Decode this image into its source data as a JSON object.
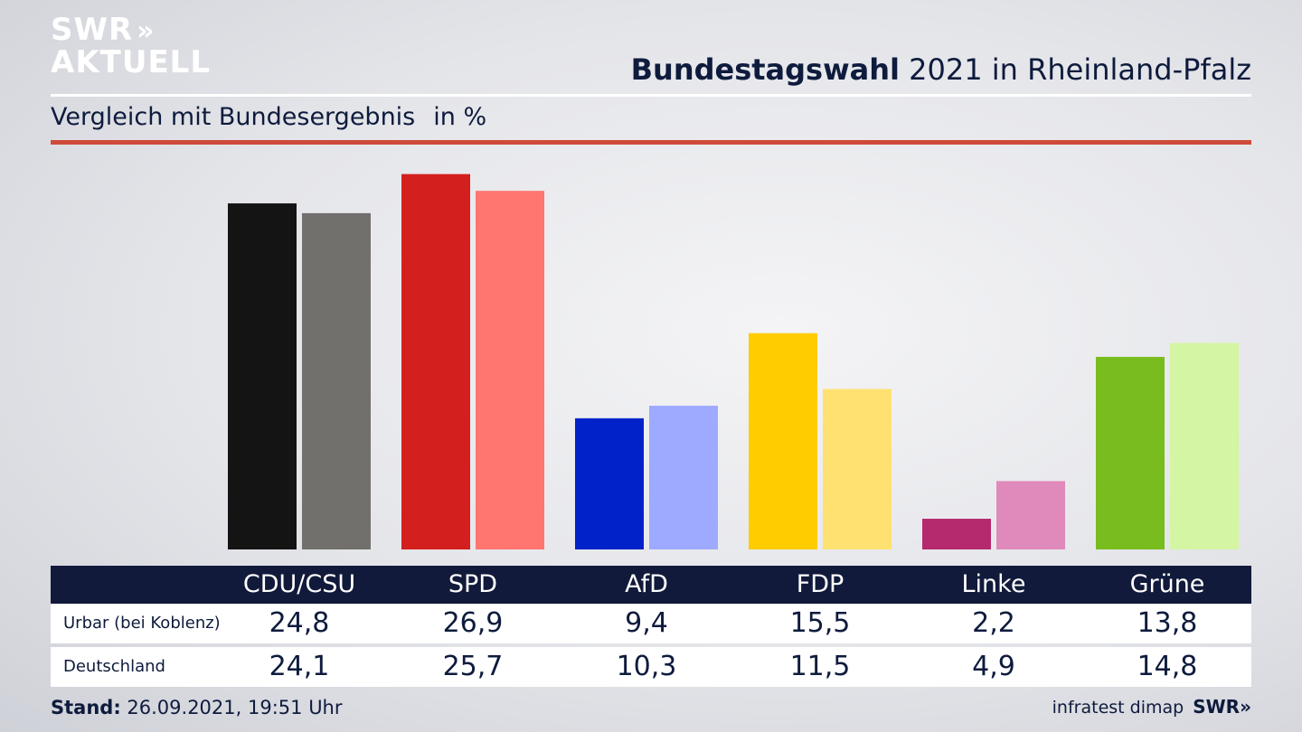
{
  "header": {
    "logo_line1": "SWR",
    "logo_chevrons": "»",
    "logo_line2": "AKTUELL",
    "title_bold": "Bundestagswahl",
    "title_rest": "2021 in Rheinland-Pfalz",
    "subtitle": "Vergleich mit Bundesergebnis",
    "unit": "in %"
  },
  "chart_data": {
    "type": "bar",
    "title": "Bundestagswahl 2021 in Rheinland-Pfalz",
    "subtitle": "Vergleich mit Bundesergebnis",
    "ylabel": "in %",
    "categories": [
      "CDU/CSU",
      "SPD",
      "AfD",
      "FDP",
      "Linke",
      "Grüne"
    ],
    "series": [
      {
        "name": "Urbar (bei Koblenz)",
        "values": [
          24.8,
          26.9,
          9.4,
          15.5,
          2.2,
          13.8
        ],
        "labels": [
          "24,8",
          "26,9",
          "9,4",
          "15,5",
          "2,2",
          "13,8"
        ],
        "colors": [
          "#141414",
          "#d41f1f",
          "#0022c8",
          "#ffcc00",
          "#b52a6e",
          "#78bc1e"
        ]
      },
      {
        "name": "Deutschland",
        "values": [
          24.1,
          25.7,
          10.3,
          11.5,
          4.9,
          14.8
        ],
        "labels": [
          "24,1",
          "25,7",
          "10,3",
          "11,5",
          "4,9",
          "14,8"
        ],
        "colors": [
          "#72706d",
          "#ff7570",
          "#9eaaff",
          "#ffe171",
          "#e089bb",
          "#d3f5a4"
        ]
      }
    ],
    "ylim": [
      0,
      27.2
    ],
    "grid": false,
    "legend": "none"
  },
  "footer": {
    "stand_label": "Stand:",
    "stand_value": "26.09.2021, 19:51 Uhr",
    "source": "infratest dimap",
    "brand": "SWR»"
  }
}
